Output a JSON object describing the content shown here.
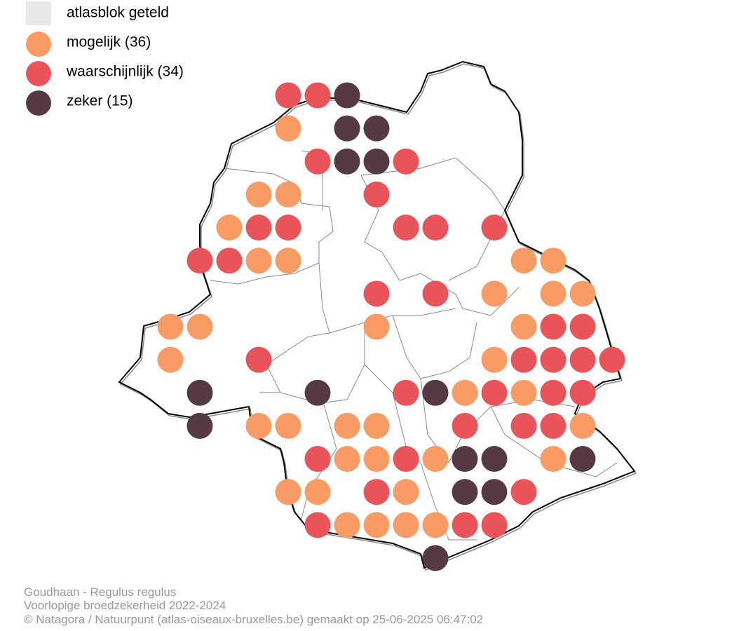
{
  "legend": [
    {
      "label": "atlasblok geteld",
      "color": "#e8e8e8",
      "shape": "square"
    },
    {
      "label": "mogelijk (36)",
      "color": "#f99b65",
      "shape": "circle"
    },
    {
      "label": "waarschijnlijk (34)",
      "color": "#e8545a",
      "shape": "circle"
    },
    {
      "label": "zeker (15)",
      "color": "#553a44",
      "shape": "circle"
    }
  ],
  "caption": [
    "Goudhaan - Regulus regulus",
    "Voorlopige broedzekerheid 2022-2024",
    "© Natagora / Natuurpunt (atlas-oiseaux-bruxelles.be) gemaakt op 25-06-2025 06:47:02"
  ]
}
